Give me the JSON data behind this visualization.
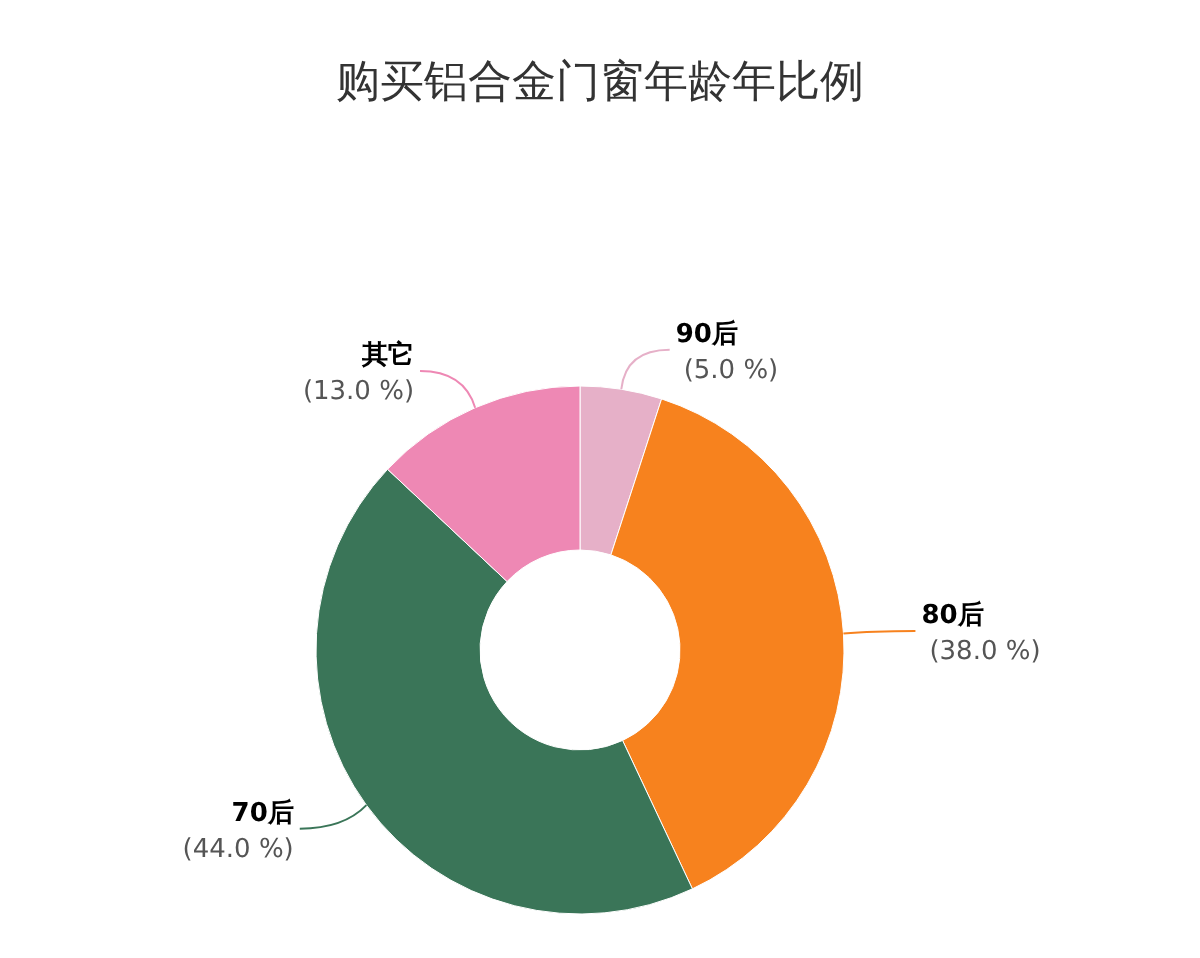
{
  "chart_data": {
    "type": "donut",
    "title": "购买铝合金门窗年龄年比例",
    "categories": [
      "90后",
      "80后",
      "70后",
      "其它"
    ],
    "values": [
      5.0,
      38.0,
      44.0,
      13.0
    ],
    "colors": [
      "#e6b0c8",
      "#f7821e",
      "#3a7558",
      "#ee88b4"
    ],
    "value_labels": [
      "(5.0 %)",
      "(38.0 %)",
      "(44.0 %)",
      "(13.0 %)"
    ]
  }
}
